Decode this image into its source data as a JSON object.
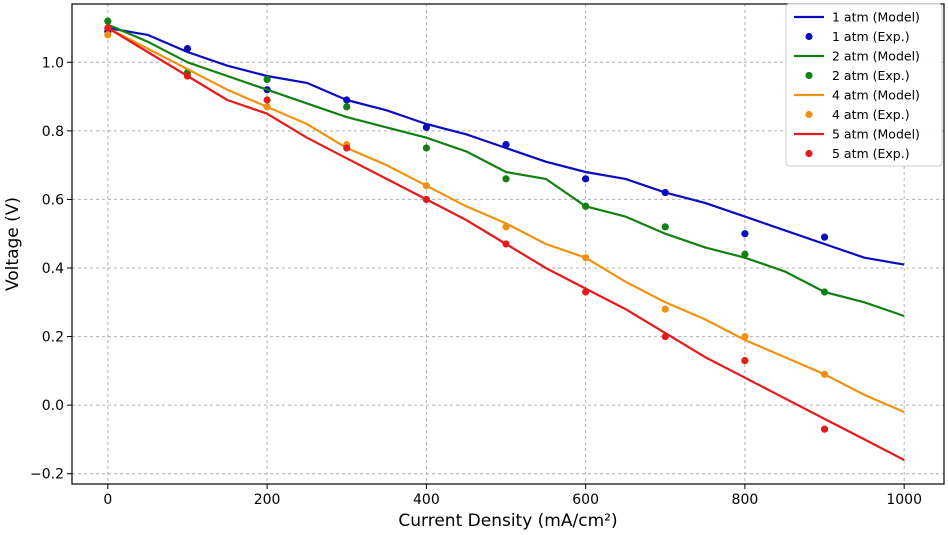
{
  "chart_data": {
    "type": "line",
    "title": "",
    "xlabel": "Current Density (mA/cm²)",
    "ylabel": "Voltage (V)",
    "xlim": [
      -45,
      1050
    ],
    "ylim": [
      -0.23,
      1.17
    ],
    "xticks": [
      0,
      200,
      400,
      600,
      800,
      1000
    ],
    "yticks": [
      -0.2,
      0.0,
      0.2,
      0.4,
      0.6,
      0.8,
      1.0
    ],
    "xtick_labels": [
      "0",
      "200",
      "400",
      "600",
      "800",
      "1000"
    ],
    "ytick_labels": [
      "−0.2",
      "0.0",
      "0.2",
      "0.4",
      "0.6",
      "0.8",
      "1.0"
    ],
    "grid": true,
    "legend_position": "top-right",
    "series": [
      {
        "name": "1 atm (Model)",
        "kind": "line",
        "color": "#0b0bbf",
        "x": [
          0,
          50,
          100,
          150,
          200,
          250,
          300,
          350,
          400,
          450,
          500,
          550,
          600,
          650,
          700,
          750,
          800,
          850,
          900,
          950,
          1000
        ],
        "y": [
          1.1,
          1.08,
          1.03,
          0.99,
          0.96,
          0.94,
          0.89,
          0.86,
          0.82,
          0.79,
          0.75,
          0.71,
          0.68,
          0.66,
          0.62,
          0.59,
          0.55,
          0.51,
          0.47,
          0.43,
          0.41
        ]
      },
      {
        "name": "1 atm (Exp.)",
        "kind": "scatter",
        "color": "#0b0bbf",
        "x": [
          0,
          100,
          200,
          300,
          400,
          500,
          600,
          700,
          800,
          900
        ],
        "y": [
          1.09,
          1.04,
          0.92,
          0.89,
          0.81,
          0.76,
          0.66,
          0.62,
          0.5,
          0.49
        ]
      },
      {
        "name": "2 atm (Model)",
        "kind": "line",
        "color": "#138013",
        "x": [
          0,
          50,
          100,
          150,
          200,
          250,
          300,
          350,
          400,
          450,
          500,
          550,
          600,
          650,
          700,
          750,
          800,
          850,
          900,
          950,
          1000
        ],
        "y": [
          1.11,
          1.06,
          1.0,
          0.96,
          0.92,
          0.88,
          0.84,
          0.81,
          0.78,
          0.74,
          0.68,
          0.66,
          0.58,
          0.55,
          0.5,
          0.46,
          0.43,
          0.39,
          0.33,
          0.3,
          0.26
        ]
      },
      {
        "name": "2 atm (Exp.)",
        "kind": "scatter",
        "color": "#138013",
        "x": [
          0,
          100,
          200,
          300,
          400,
          500,
          600,
          700,
          800,
          900
        ],
        "y": [
          1.12,
          0.97,
          0.95,
          0.87,
          0.75,
          0.66,
          0.58,
          0.52,
          0.44,
          0.33
        ]
      },
      {
        "name": "4 atm (Model)",
        "kind": "line",
        "color": "#f29111",
        "x": [
          0,
          50,
          100,
          150,
          200,
          250,
          300,
          350,
          400,
          450,
          500,
          550,
          600,
          650,
          700,
          750,
          800,
          850,
          900,
          950,
          1000
        ],
        "y": [
          1.1,
          1.04,
          0.98,
          0.92,
          0.87,
          0.82,
          0.75,
          0.7,
          0.64,
          0.58,
          0.53,
          0.47,
          0.43,
          0.36,
          0.3,
          0.25,
          0.19,
          0.14,
          0.09,
          0.03,
          -0.02
        ]
      },
      {
        "name": "4 atm (Exp.)",
        "kind": "scatter",
        "color": "#f29111",
        "x": [
          0,
          100,
          200,
          300,
          400,
          500,
          600,
          700,
          800,
          900
        ],
        "y": [
          1.08,
          0.96,
          0.87,
          0.76,
          0.64,
          0.52,
          0.43,
          0.28,
          0.2,
          0.09
        ]
      },
      {
        "name": "5 atm (Model)",
        "kind": "line",
        "color": "#e51a1a",
        "x": [
          0,
          50,
          100,
          150,
          200,
          250,
          300,
          350,
          400,
          450,
          500,
          550,
          600,
          650,
          700,
          750,
          800,
          850,
          900,
          950,
          1000
        ],
        "y": [
          1.1,
          1.03,
          0.96,
          0.89,
          0.85,
          0.78,
          0.72,
          0.66,
          0.6,
          0.54,
          0.47,
          0.4,
          0.34,
          0.28,
          0.21,
          0.14,
          0.08,
          0.02,
          -0.04,
          -0.1,
          -0.16
        ]
      },
      {
        "name": "5 atm (Exp.)",
        "kind": "scatter",
        "color": "#e51a1a",
        "x": [
          0,
          100,
          200,
          300,
          400,
          500,
          600,
          700,
          800,
          900
        ],
        "y": [
          1.1,
          0.96,
          0.89,
          0.75,
          0.6,
          0.47,
          0.33,
          0.2,
          0.13,
          -0.07
        ]
      }
    ]
  }
}
